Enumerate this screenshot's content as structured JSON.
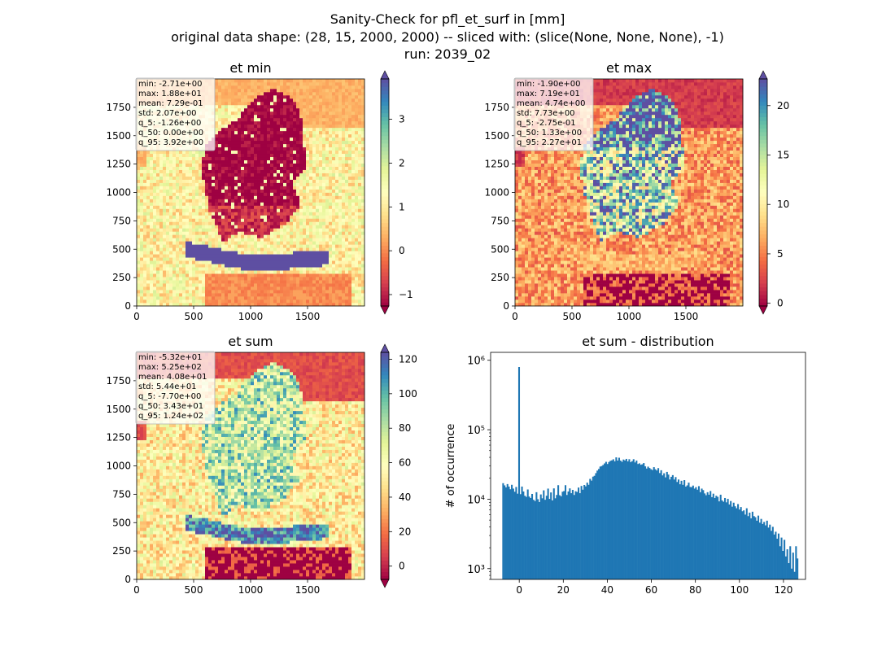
{
  "figure": {
    "title_lines": [
      "Sanity-Check for pfl_et_surf in [mm]",
      "original data shape: (28, 15, 2000, 2000) -- sliced with: (slice(None, None, None), -1)",
      "run: 2039_02"
    ]
  },
  "chart_data": [
    {
      "type": "heatmap",
      "title": "et min",
      "xlim": [
        0,
        2000
      ],
      "ylim": [
        0,
        2000
      ],
      "xticks": [
        0,
        500,
        1000,
        1500
      ],
      "yticks": [
        0,
        250,
        500,
        750,
        1000,
        1250,
        1500,
        1750
      ],
      "colormap": "Spectral",
      "colorbar": {
        "vmin": -1.26,
        "vmax": 3.92,
        "ticks": [
          -1,
          0,
          1,
          2,
          3
        ],
        "extend": "both"
      },
      "stats": [
        "min: -2.71e+00",
        "max: 1.88e+01",
        "mean: 7.29e-01",
        "std: 2.07e+00",
        "q_5: -1.26e+00",
        "q_50: 0.00e+00",
        "q_95: 3.92e+00"
      ],
      "pattern": "min"
    },
    {
      "type": "heatmap",
      "title": "et max",
      "xlim": [
        0,
        2000
      ],
      "ylim": [
        0,
        2000
      ],
      "xticks": [
        0,
        500,
        1000,
        1500
      ],
      "yticks": [
        0,
        250,
        500,
        750,
        1000,
        1250,
        1500,
        1750
      ],
      "colormap": "Spectral",
      "colorbar": {
        "vmin": -0.275,
        "vmax": 22.7,
        "ticks": [
          0,
          5,
          10,
          15,
          20
        ],
        "extend": "both"
      },
      "stats": [
        "min: -1.90e+00",
        "max: 7.19e+01",
        "mean: 4.74e+00",
        "std: 7.73e+00",
        "q_5: -2.75e-01",
        "q_50: 1.33e+00",
        "q_95: 2.27e+01"
      ],
      "pattern": "max"
    },
    {
      "type": "heatmap",
      "title": "et sum",
      "xlim": [
        0,
        2000
      ],
      "ylim": [
        0,
        2000
      ],
      "xticks": [
        0,
        500,
        1000,
        1500
      ],
      "yticks": [
        0,
        250,
        500,
        750,
        1000,
        1250,
        1500,
        1750
      ],
      "colormap": "Spectral",
      "colorbar": {
        "vmin": -7.7,
        "vmax": 124,
        "ticks": [
          0,
          20,
          40,
          60,
          80,
          100,
          120
        ],
        "extend": "both"
      },
      "stats": [
        "min: -5.32e+01",
        "max: 5.25e+02",
        "mean: 4.08e+01",
        "std: 5.44e+01",
        "q_5: -7.70e+00",
        "q_50: 3.43e+01",
        "q_95: 1.24e+02"
      ],
      "pattern": "sum"
    },
    {
      "type": "bar",
      "title": "et sum - distribution",
      "ylabel": "# of occurrence",
      "xlabel": "",
      "yscale": "log",
      "xlim": [
        -13,
        130
      ],
      "ylim": [
        700,
        1300000
      ],
      "xticks": [
        0,
        20,
        40,
        60,
        80,
        100,
        120
      ],
      "yticks": [
        {
          "value": 1000,
          "label": "10³"
        },
        {
          "value": 10000,
          "label": "10⁴"
        },
        {
          "value": 100000,
          "label": "10⁵"
        },
        {
          "value": 1000000,
          "label": "10⁶"
        }
      ],
      "bins": {
        "start": -7.7,
        "end": 124.0,
        "count": 200
      },
      "counts": [
        17000,
        15800,
        14800,
        16500,
        15200,
        13900,
        16100,
        14200,
        12800,
        15000,
        12000,
        800000,
        11800,
        15200,
        12900,
        11200,
        10800,
        13800,
        10900,
        10400,
        11900,
        9800,
        9400,
        12600,
        10000,
        9100,
        11700,
        10300,
        13400,
        9800,
        11200,
        14200,
        10100,
        12500,
        9600,
        14300,
        10300,
        11500,
        15900,
        11400,
        11000,
        12800,
        13100,
        15900,
        11500,
        12900,
        14300,
        12200,
        13600,
        11500,
        13000,
        12700,
        14700,
        12200,
        15500,
        13700,
        16000,
        15300,
        17300,
        16100,
        19600,
        18500,
        21100,
        21700,
        23700,
        25800,
        27200,
        29500,
        30000,
        31100,
        32700,
        34500,
        32100,
        34300,
        35700,
        36200,
        37500,
        35100,
        40000,
        36000,
        39500,
        36000,
        34500,
        37200,
        36100,
        38000,
        35000,
        37600,
        34200,
        35300,
        37600,
        33800,
        36000,
        32100,
        32800,
        31300,
        31800,
        33100,
        29700,
        27600,
        29400,
        28100,
        27000,
        26300,
        28900,
        27000,
        25900,
        28000,
        23800,
        26100,
        22000,
        23600,
        20600,
        24700,
        22600,
        19200,
        21000,
        22200,
        19200,
        20800,
        17700,
        19200,
        16400,
        18400,
        16100,
        18800,
        15200,
        15800,
        17300,
        15000,
        14900,
        15700,
        14200,
        14900,
        13700,
        15400,
        12600,
        14200,
        13500,
        12100,
        11400,
        12600,
        11600,
        13100,
        10700,
        12000,
        10400,
        11200,
        10800,
        9300,
        11600,
        9600,
        9200,
        10400,
        9000,
        10100,
        8400,
        9400,
        7800,
        8900,
        7900,
        7400,
        8500,
        7100,
        7700,
        6700,
        6900,
        6000,
        7400,
        5700,
        6400,
        5300,
        6600,
        5700,
        5500,
        4900,
        5800,
        4600,
        5200,
        4400,
        4700,
        4200,
        4900,
        3900,
        4300,
        3500,
        4000,
        3100,
        3400,
        2700,
        3200,
        2100,
        2800,
        1800,
        2600,
        1500,
        1900,
        1200,
        2100,
        1000,
        1700,
        900,
        2100,
        1400
      ],
      "color": "#1f77b4"
    }
  ]
}
